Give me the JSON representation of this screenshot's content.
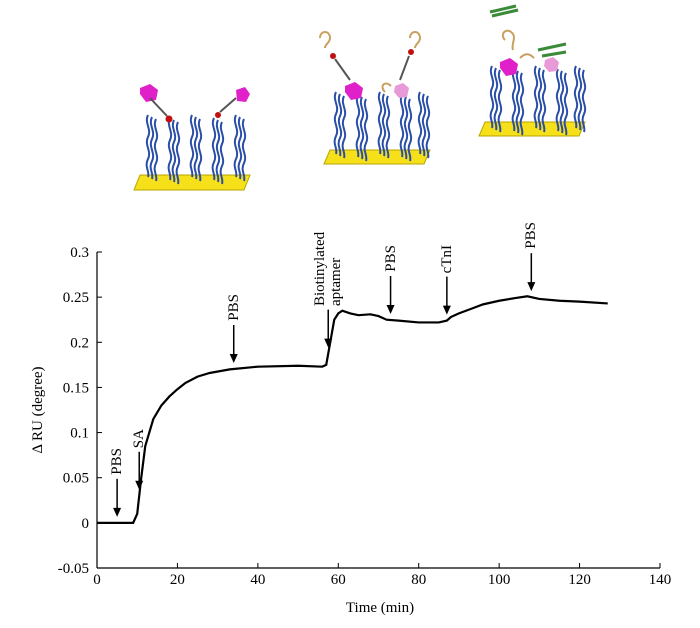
{
  "chart_data": {
    "type": "line",
    "x_label": "Time (min)",
    "y_label": "Δ RU (degree)",
    "x": [
      0,
      9,
      10,
      11,
      12,
      13,
      14,
      16,
      18,
      20,
      22,
      25,
      28,
      33,
      40,
      50,
      56,
      57,
      58,
      59,
      60,
      61,
      63,
      65,
      68,
      70,
      72,
      75,
      80,
      85,
      87,
      88,
      90,
      93,
      96,
      100,
      104,
      107,
      110,
      115,
      120,
      127
    ],
    "values": [
      0,
      0,
      0.01,
      0.05,
      0.085,
      0.1,
      0.115,
      0.13,
      0.14,
      0.148,
      0.155,
      0.162,
      0.166,
      0.17,
      0.173,
      0.174,
      0.173,
      0.175,
      0.2,
      0.225,
      0.232,
      0.235,
      0.232,
      0.23,
      0.231,
      0.229,
      0.225,
      0.224,
      0.222,
      0.222,
      0.224,
      0.228,
      0.232,
      0.237,
      0.242,
      0.246,
      0.249,
      0.251,
      0.248,
      0.246,
      0.245,
      0.243
    ],
    "color": "#000000",
    "xlim": [
      0,
      140
    ],
    "ylim": [
      -0.05,
      0.3
    ],
    "xticks": [
      0,
      20,
      40,
      60,
      80,
      100,
      120,
      140
    ],
    "yticks": [
      -0.05,
      0,
      0.05,
      0.1,
      0.15,
      0.2,
      0.25,
      0.3
    ],
    "grid": false,
    "annotations": [
      {
        "text": "PBS",
        "x": 5
      },
      {
        "text": "SA",
        "x": 10.5
      },
      {
        "text": "PBS",
        "x": 34
      },
      {
        "text": "Biotinylated aptamer",
        "x": 57.5
      },
      {
        "text": "PBS",
        "x": 73
      },
      {
        "text": "cTnI",
        "x": 87
      },
      {
        "text": "PBS",
        "x": 108
      }
    ]
  }
}
